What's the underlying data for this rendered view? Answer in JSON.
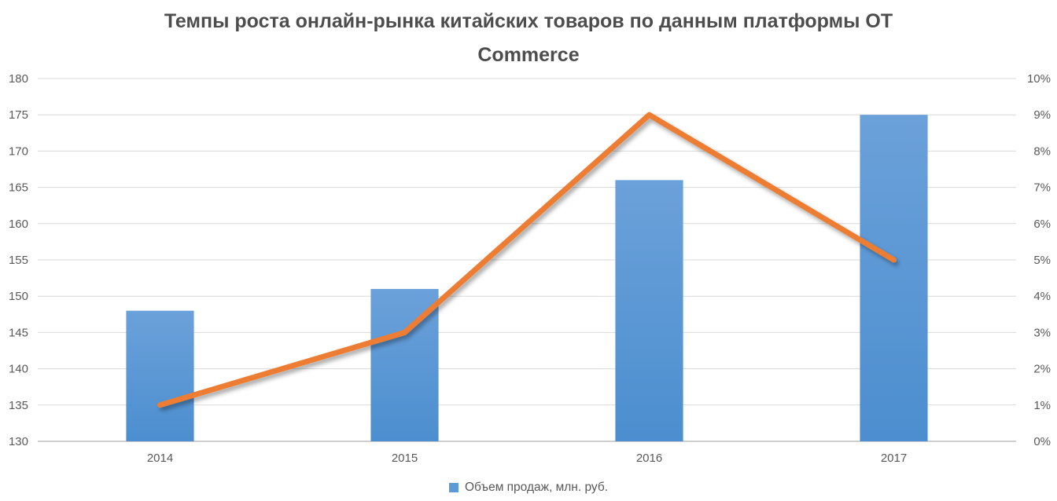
{
  "title": "Темпы роста онлайн-рынка китайских товаров по данным платформы OT Commerce",
  "legend": {
    "items": [
      {
        "label": "Объем продаж, млн. руб.",
        "color": "#5B9BD5"
      }
    ]
  },
  "chart_data": {
    "type": "combo-bar-line",
    "title": "Темпы роста онлайн-рынка китайских товаров по данным платформы OT Commerce",
    "categories": [
      "2014",
      "2015",
      "2016",
      "2017"
    ],
    "series": [
      {
        "name": "Объем продаж, млн. руб.",
        "type": "bar",
        "axis": "left",
        "values": [
          148,
          151,
          166,
          175
        ]
      },
      {
        "name": "",
        "type": "line",
        "axis": "right",
        "values": [
          1,
          3,
          9,
          5
        ],
        "unit": "%"
      }
    ],
    "left_axis": {
      "min": 130,
      "max": 180,
      "step": 5,
      "tick_labels": [
        "180",
        "175",
        "170",
        "165",
        "160",
        "155",
        "150",
        "145",
        "140",
        "135",
        "130"
      ]
    },
    "right_axis": {
      "min": 0,
      "max": 10,
      "step": 1,
      "tick_labels": [
        "10%",
        "9%",
        "8%",
        "7%",
        "6%",
        "5%",
        "4%",
        "3%",
        "2%",
        "1%",
        "0%"
      ]
    },
    "grid": true,
    "legend_position": "bottom",
    "colors": {
      "bar_top": "#6BA1DA",
      "bar_bottom": "#4C8ECF",
      "bar_legend": "#5B9BD5",
      "line": "#ED7D31",
      "grid": "#D9D9D9",
      "axis_line": "#BFBFBF",
      "text": "#595959",
      "title_text": "#4D4D4D"
    }
  }
}
